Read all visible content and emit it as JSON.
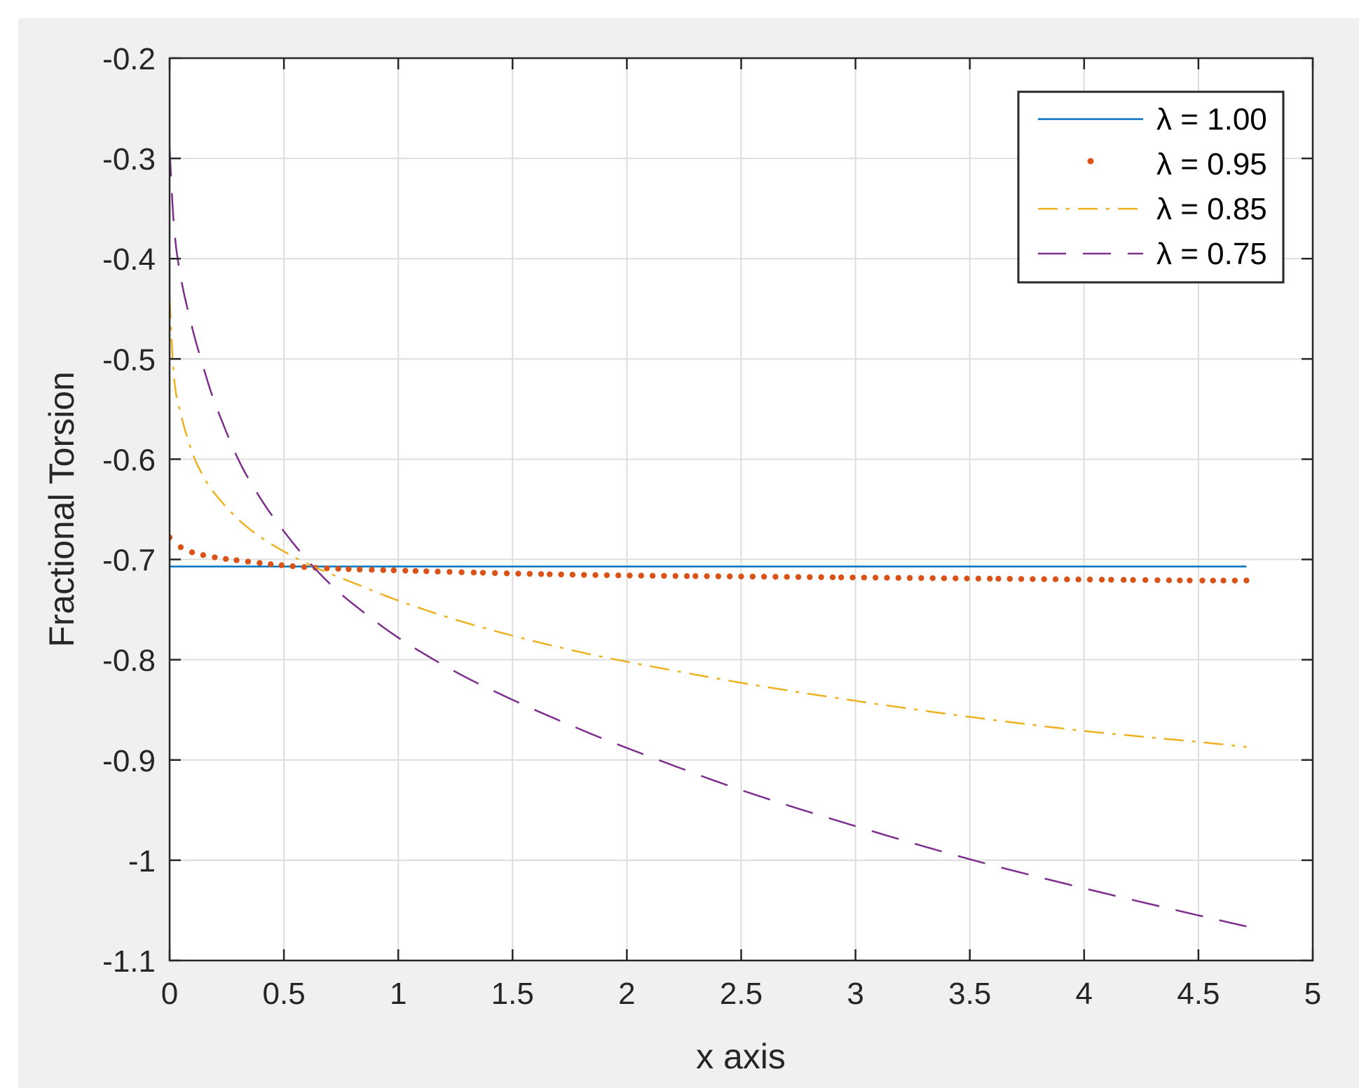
{
  "chart_data": {
    "type": "line",
    "title": "",
    "xlabel": "x axis",
    "ylabel": "Fractional Torsion",
    "xlim": [
      0,
      5
    ],
    "ylim": [
      -1.1,
      -0.2
    ],
    "xticks": [
      0,
      0.5,
      1,
      1.5,
      2,
      2.5,
      3,
      3.5,
      4,
      4.5,
      5
    ],
    "xtick_labels": [
      "0",
      "0.5",
      "1",
      "1.5",
      "2",
      "2.5",
      "3",
      "3.5",
      "4",
      "4.5",
      "5"
    ],
    "yticks": [
      -0.2,
      -0.3,
      -0.4,
      -0.5,
      -0.6,
      -0.7,
      -0.8,
      -0.9,
      -1,
      -1.1
    ],
    "ytick_labels": [
      "-0.2",
      "-0.3",
      "-0.4",
      "-0.5",
      "-0.6",
      "-0.7",
      "-0.8",
      "-0.9",
      "-1",
      "-1.1"
    ],
    "grid": true,
    "legend_position": "top-right",
    "series": [
      {
        "name": "λ = 1.00",
        "color": "#0072BD",
        "style": "solid",
        "x": [
          0.0,
          0.5,
          1.0,
          1.5,
          2.0,
          2.5,
          3.0,
          3.5,
          4.0,
          4.5,
          4.71
        ],
        "y": [
          -0.707,
          -0.707,
          -0.707,
          -0.707,
          -0.707,
          -0.707,
          -0.707,
          -0.707,
          -0.707,
          -0.707,
          -0.707
        ]
      },
      {
        "name": "λ = 0.95",
        "color": "#D95319",
        "style": "dotted",
        "x": [
          0.0,
          0.05,
          0.1,
          0.2,
          0.3,
          0.5,
          0.7,
          1.0,
          1.5,
          2.0,
          2.5,
          3.0,
          3.5,
          4.0,
          4.5,
          4.71
        ],
        "y": [
          -0.678,
          -0.688,
          -0.693,
          -0.698,
          -0.701,
          -0.706,
          -0.709,
          -0.711,
          -0.714,
          -0.716,
          -0.717,
          -0.718,
          -0.719,
          -0.72,
          -0.721,
          -0.721
        ]
      },
      {
        "name": "λ = 0.85",
        "color": "#EDB120",
        "style": "dashdot",
        "x": [
          0.0,
          0.02,
          0.05,
          0.1,
          0.15,
          0.2,
          0.3,
          0.4,
          0.5,
          0.6,
          0.7,
          0.8,
          1.0,
          1.25,
          1.5,
          1.75,
          2.0,
          2.5,
          3.0,
          3.5,
          4.0,
          4.5,
          4.71
        ],
        "y": [
          -0.44,
          -0.52,
          -0.556,
          -0.594,
          -0.618,
          -0.635,
          -0.66,
          -0.678,
          -0.692,
          -0.704,
          -0.714,
          -0.723,
          -0.741,
          -0.76,
          -0.776,
          -0.79,
          -0.802,
          -0.823,
          -0.841,
          -0.857,
          -0.871,
          -0.882,
          -0.887
        ]
      },
      {
        "name": "λ = 0.75",
        "color": "#7E2F8E",
        "style": "dashed",
        "x": [
          0.0,
          0.02,
          0.05,
          0.1,
          0.15,
          0.2,
          0.3,
          0.4,
          0.5,
          0.6,
          0.7,
          0.8,
          1.0,
          1.25,
          1.5,
          1.75,
          2.0,
          2.5,
          3.0,
          3.5,
          4.0,
          4.5,
          4.71
        ],
        "y": [
          -0.29,
          -0.37,
          -0.42,
          -0.47,
          -0.51,
          -0.545,
          -0.6,
          -0.64,
          -0.672,
          -0.7,
          -0.724,
          -0.744,
          -0.778,
          -0.812,
          -0.84,
          -0.865,
          -0.888,
          -0.93,
          -0.966,
          -0.999,
          -1.028,
          -1.055,
          -1.066
        ]
      }
    ]
  }
}
